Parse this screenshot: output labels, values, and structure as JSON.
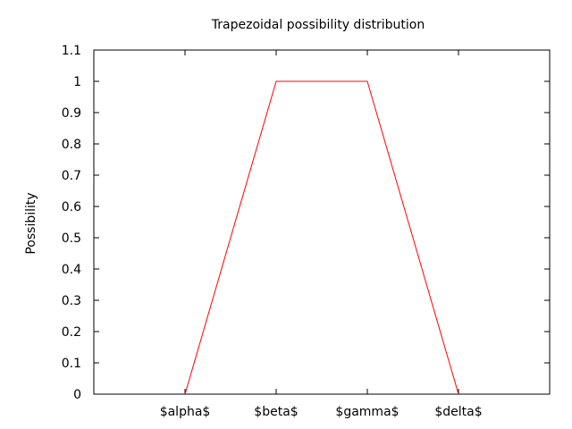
{
  "chart_data": {
    "type": "line",
    "title": "Trapezoidal possibility distribution",
    "xlabel": "",
    "ylabel": "Possibility",
    "xlim": [
      0,
      5
    ],
    "ylim": [
      0,
      1.1
    ],
    "x_ticks": [
      {
        "value": 1,
        "label": "$alpha$"
      },
      {
        "value": 2,
        "label": "$beta$"
      },
      {
        "value": 3,
        "label": "$gamma$"
      },
      {
        "value": 4,
        "label": "$delta$"
      }
    ],
    "y_ticks": [
      {
        "value": 0,
        "label": "0"
      },
      {
        "value": 0.1,
        "label": "0.1"
      },
      {
        "value": 0.2,
        "label": "0.2"
      },
      {
        "value": 0.3,
        "label": "0.3"
      },
      {
        "value": 0.4,
        "label": "0.4"
      },
      {
        "value": 0.5,
        "label": "0.5"
      },
      {
        "value": 0.6,
        "label": "0.6"
      },
      {
        "value": 0.7,
        "label": "0.7"
      },
      {
        "value": 0.8,
        "label": "0.8"
      },
      {
        "value": 0.9,
        "label": "0.9"
      },
      {
        "value": 1,
        "label": "1"
      },
      {
        "value": 1.1,
        "label": "1.1"
      }
    ],
    "grid": false,
    "series": [
      {
        "color": "#ff0000",
        "x": [
          1,
          2,
          3,
          4
        ],
        "y": [
          0,
          1,
          1,
          0
        ]
      }
    ]
  }
}
